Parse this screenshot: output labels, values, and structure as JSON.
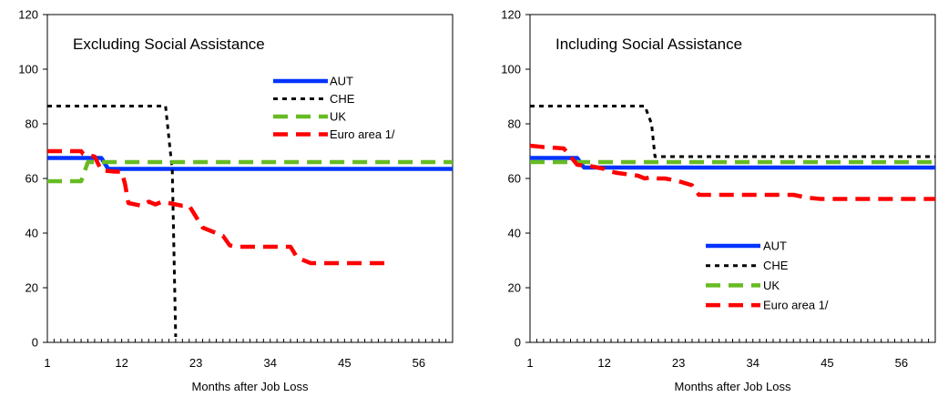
{
  "chart_data": [
    {
      "type": "line",
      "title": "Excluding Social Assistance",
      "xlabel": "Months after Job Loss",
      "ylabel": "",
      "xlim": [
        1,
        61
      ],
      "ylim": [
        0,
        120
      ],
      "xticks": [
        1,
        12,
        23,
        34,
        45,
        56
      ],
      "yticks": [
        0,
        20,
        40,
        60,
        80,
        100,
        120
      ],
      "legend_position": "upper-right",
      "series": [
        {
          "name": "AUT",
          "color": "#0033ff",
          "style": "solid",
          "points": [
            [
              1,
              67.5
            ],
            [
              9,
              67.5
            ],
            [
              10,
              63.5
            ],
            [
              61,
              63.5
            ]
          ]
        },
        {
          "name": "CHE",
          "color": "#000000",
          "style": "dotted",
          "points": [
            [
              1,
              86.5
            ],
            [
              18.5,
              86.5
            ],
            [
              19.5,
              63
            ],
            [
              20,
              2
            ]
          ]
        },
        {
          "name": "UK",
          "color": "#66bb22",
          "style": "dashed",
          "points": [
            [
              1,
              59
            ],
            [
              6,
              59
            ],
            [
              7,
              66
            ],
            [
              61,
              66
            ]
          ]
        },
        {
          "name": "Euro area 1/",
          "color": "#ff0000",
          "style": "dashed",
          "points": [
            [
              1,
              70
            ],
            [
              6,
              70
            ],
            [
              6.3,
              69
            ],
            [
              8,
              68
            ],
            [
              9,
              63
            ],
            [
              11,
              62.5
            ],
            [
              12,
              62.5
            ],
            [
              12.5,
              58
            ],
            [
              13,
              51
            ],
            [
              15,
              50
            ],
            [
              16,
              51.5
            ],
            [
              17,
              50.5
            ],
            [
              18,
              51.5
            ],
            [
              19,
              51
            ],
            [
              21,
              50
            ],
            [
              22,
              50
            ],
            [
              24,
              42
            ],
            [
              26,
              40
            ],
            [
              27,
              39
            ],
            [
              28,
              35.5
            ],
            [
              29,
              35
            ],
            [
              37,
              35
            ],
            [
              38,
              31
            ],
            [
              39,
              30
            ],
            [
              40,
              29
            ],
            [
              52,
              29
            ]
          ]
        }
      ]
    },
    {
      "type": "line",
      "title": "Including Social Assistance",
      "xlabel": "Months after Job Loss",
      "ylabel": "",
      "xlim": [
        1,
        61
      ],
      "ylim": [
        0,
        120
      ],
      "xticks": [
        1,
        12,
        23,
        34,
        45,
        56
      ],
      "yticks": [
        0,
        20,
        40,
        60,
        80,
        100,
        120
      ],
      "legend_position": "lower-right",
      "series": [
        {
          "name": "AUT",
          "color": "#0033ff",
          "style": "solid",
          "points": [
            [
              1,
              67.5
            ],
            [
              8,
              67.5
            ],
            [
              9,
              64
            ],
            [
              61,
              64
            ]
          ]
        },
        {
          "name": "CHE",
          "color": "#000000",
          "style": "dotted",
          "points": [
            [
              1,
              86.5
            ],
            [
              18,
              86.5
            ],
            [
              19,
              80
            ],
            [
              19.5,
              68
            ],
            [
              61,
              68
            ]
          ]
        },
        {
          "name": "UK",
          "color": "#66bb22",
          "style": "dashed",
          "points": [
            [
              1,
              66
            ],
            [
              61,
              66
            ]
          ]
        },
        {
          "name": "Euro area 1/",
          "color": "#ff0000",
          "style": "dashed",
          "points": [
            [
              1,
              72
            ],
            [
              3,
              71.5
            ],
            [
              6,
              71
            ],
            [
              8,
              65
            ],
            [
              10,
              64.5
            ],
            [
              12,
              63.5
            ],
            [
              13,
              62.5
            ],
            [
              14,
              62
            ],
            [
              17,
              61
            ],
            [
              18,
              60
            ],
            [
              19,
              60.5
            ],
            [
              20,
              60
            ],
            [
              21,
              60
            ],
            [
              23,
              59
            ],
            [
              25,
              57.5
            ],
            [
              26,
              54
            ],
            [
              34,
              54
            ],
            [
              40,
              54
            ],
            [
              42,
              53
            ],
            [
              44,
              52.5
            ],
            [
              61,
              52.5
            ]
          ]
        }
      ]
    }
  ]
}
